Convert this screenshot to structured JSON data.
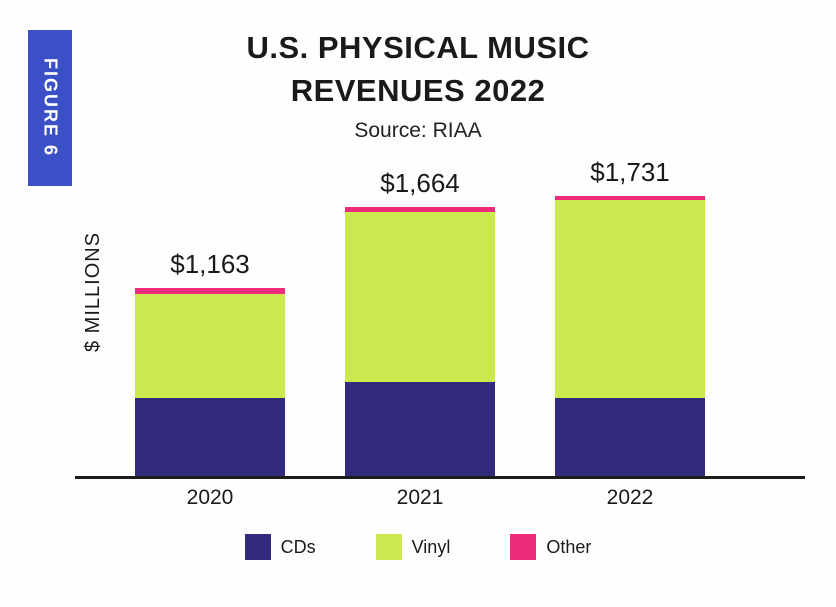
{
  "figure_label": "FIGURE 6",
  "title": {
    "line1": "U.S. PHYSICAL MUSIC",
    "line2": "REVENUES 2022",
    "source": "Source: RIAA"
  },
  "colors": {
    "cds": "#312a7d",
    "vinyl": "#cbe94f",
    "other": "#ee2a7b",
    "badge": "#3b50c7",
    "axis": "#1c1c1c"
  },
  "chart_data": {
    "type": "bar",
    "stacked": true,
    "title": "U.S. PHYSICAL MUSIC REVENUES 2022",
    "source": "Source: RIAA",
    "ylabel": "$ MILLIONS",
    "categories": [
      "2020",
      "2021",
      "2022"
    ],
    "series": [
      {
        "name": "CDs",
        "color": "#312a7d",
        "values": [
          483,
          584,
          483
        ]
      },
      {
        "name": "Vinyl",
        "color": "#cbe94f",
        "values": [
          645,
          1050,
          1223
        ]
      },
      {
        "name": "Other",
        "color": "#ee2a7b",
        "values": [
          35,
          30,
          25
        ]
      }
    ],
    "totals": [
      1163,
      1664,
      1731
    ],
    "total_labels": [
      "$1,163",
      "$1,664",
      "$1,731"
    ],
    "ylim": [
      0,
      1800
    ],
    "grid": false,
    "legend_position": "bottom"
  }
}
